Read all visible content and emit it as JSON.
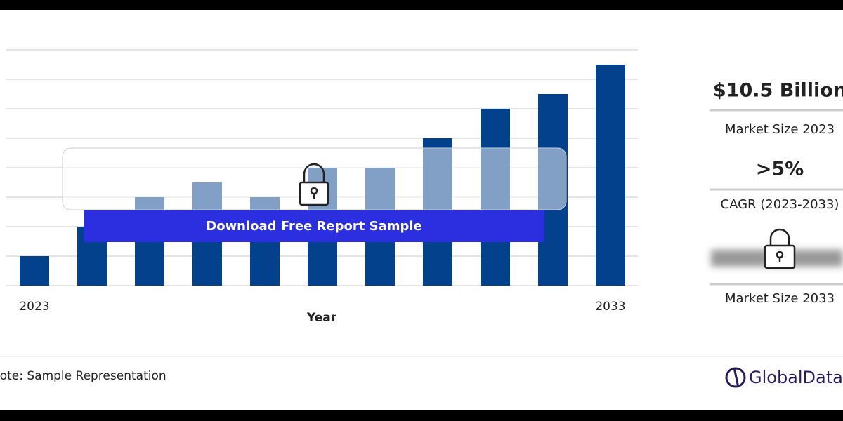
{
  "chart_data": {
    "type": "bar",
    "x_label": "Year",
    "categories": [
      "2023",
      null,
      null,
      null,
      null,
      null,
      null,
      null,
      null,
      null,
      "2033"
    ],
    "values": [
      1,
      2,
      3,
      3.5,
      3,
      4,
      4,
      5,
      6,
      6.5,
      7.5
    ],
    "color": "#04418c",
    "ylim": [
      0,
      8
    ],
    "yticks": [
      0,
      1,
      2,
      3,
      4,
      5,
      6,
      7,
      8
    ],
    "grid": true
  },
  "button": {
    "label": "Download Free Report Sample"
  },
  "summary": {
    "stats": [
      {
        "value": "$10.5 Billion",
        "label": "Market Size 2023"
      },
      {
        "value": ">5%",
        "label": "CAGR (2023-2033)"
      },
      {
        "label": "Market Size 2033"
      }
    ]
  },
  "note": "Note: Sample Representation",
  "brand": "GlobalData"
}
